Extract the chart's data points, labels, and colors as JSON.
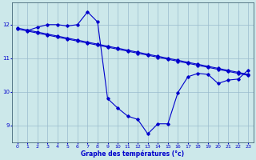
{
  "bg_color": "#cce8ea",
  "line_color": "#0000cc",
  "grid_color": "#99bbcc",
  "xlabel": "Graphe des températures (°c)",
  "ylim": [
    8.5,
    12.65
  ],
  "xlim": [
    -0.5,
    23.5
  ],
  "yticks": [
    9,
    10,
    11,
    12
  ],
  "xticks": [
    0,
    1,
    2,
    3,
    4,
    5,
    6,
    7,
    8,
    9,
    10,
    11,
    12,
    13,
    14,
    15,
    16,
    17,
    18,
    19,
    20,
    21,
    22,
    23
  ],
  "series1_x": [
    0,
    1,
    2,
    3,
    4,
    5,
    6,
    7,
    8,
    9,
    10,
    11,
    12,
    13,
    14,
    15,
    16,
    17,
    18,
    19,
    20,
    21,
    22,
    23
  ],
  "series1_y": [
    11.9,
    11.84,
    11.78,
    11.72,
    11.66,
    11.6,
    11.54,
    11.48,
    11.42,
    11.36,
    11.3,
    11.24,
    11.18,
    11.12,
    11.06,
    11.0,
    10.94,
    10.88,
    10.82,
    10.76,
    10.7,
    10.64,
    10.58,
    10.52
  ],
  "series2_x": [
    0,
    1,
    2,
    3,
    4,
    5,
    6,
    7,
    8,
    9,
    10,
    11,
    12,
    13,
    14,
    15,
    16,
    17,
    18,
    19,
    20,
    21,
    22,
    23
  ],
  "series2_y": [
    11.87,
    11.81,
    11.75,
    11.69,
    11.63,
    11.57,
    11.51,
    11.45,
    11.39,
    11.33,
    11.27,
    11.21,
    11.15,
    11.09,
    11.03,
    10.97,
    10.91,
    10.85,
    10.79,
    10.73,
    10.67,
    10.61,
    10.55,
    10.49
  ],
  "series3_x": [
    1,
    2,
    3,
    4,
    5,
    6,
    7,
    8,
    9,
    10,
    11,
    12,
    13,
    14,
    15,
    16,
    17,
    18,
    19,
    20,
    21,
    22,
    23
  ],
  "series3_y": [
    11.82,
    11.92,
    12.0,
    12.0,
    11.96,
    12.0,
    12.38,
    12.08,
    9.8,
    9.52,
    9.28,
    9.18,
    8.75,
    9.05,
    9.05,
    9.98,
    10.45,
    10.55,
    10.52,
    10.25,
    10.35,
    10.38,
    10.65
  ]
}
